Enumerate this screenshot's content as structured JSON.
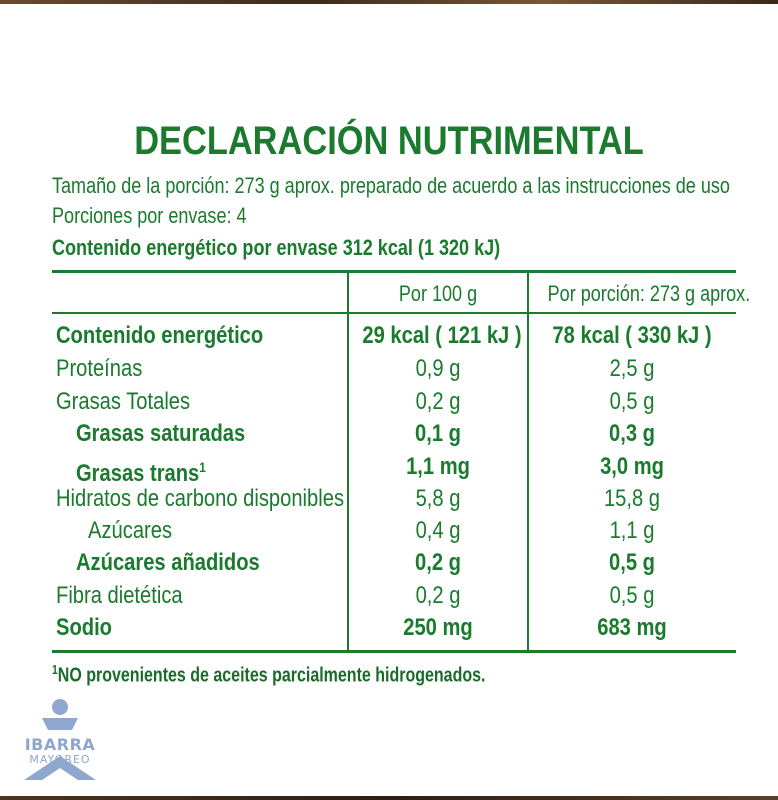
{
  "title": "DECLARACIÓN NUTRIMENTAL",
  "serving_size": "Tamaño de la porción: 273 g aprox. preparado de acuerdo a las instrucciones de uso",
  "servings": "Porciones por envase: 4",
  "energy_per_package": "Contenido energético por envase 312 kcal (1 320 kJ)",
  "table": {
    "col_per100": "Por 100 g",
    "col_perserving": "Por porción: 273 g aprox.",
    "rows": [
      {
        "label": "Contenido energético",
        "per100": "29 kcal ( 121 kJ )",
        "perserving": "78 kcal ( 330 kJ )"
      },
      {
        "label": "Proteínas",
        "per100": "0,9 g",
        "perserving": "2,5 g"
      },
      {
        "label": "Grasas Totales",
        "per100": "0,2 g",
        "perserving": "0,5 g"
      },
      {
        "label": "Grasas saturadas",
        "per100": "0,1 g",
        "perserving": "0,3 g"
      },
      {
        "label": "Grasas trans",
        "label_sup": "1",
        "per100": "1,1 mg",
        "perserving": "3,0 mg"
      },
      {
        "label": "Hidratos de carbono disponibles",
        "per100": "5,8 g",
        "perserving": "15,8 g"
      },
      {
        "label": "Azúcares",
        "per100": "0,4 g",
        "perserving": "1,1 g"
      },
      {
        "label": "Azúcares añadidos",
        "per100": "0,2 g",
        "perserving": "0,5 g"
      },
      {
        "label": "Fibra dietética",
        "per100": "0,2 g",
        "perserving": "0,5 g"
      },
      {
        "label": "Sodio",
        "per100": "250 mg",
        "perserving": "683 mg"
      }
    ]
  },
  "footnote_mark": "1",
  "footnote": "NO provenientes de aceites parcialmente hidrogenados.",
  "watermark": {
    "main": "IBARRA",
    "sub": "MAYOREO"
  },
  "colors": {
    "text_green": "#1c7a2f",
    "watermark_blue": "#8fa6cf"
  }
}
